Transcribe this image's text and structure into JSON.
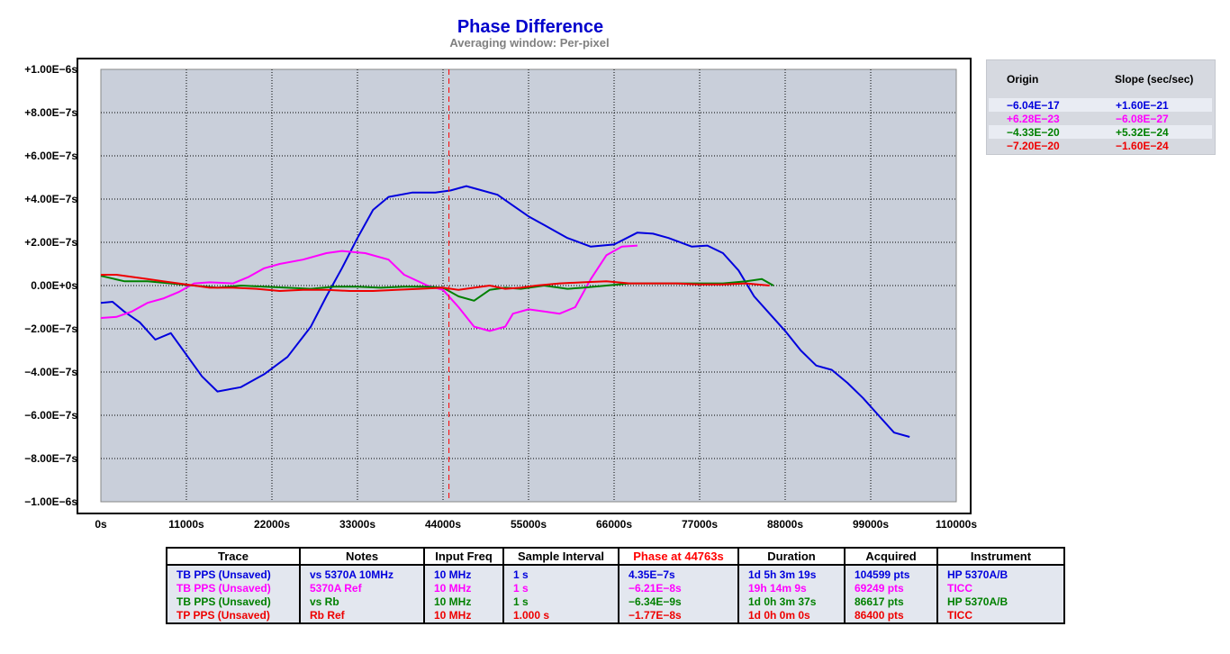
{
  "chart_data": {
    "type": "line",
    "title": "Phase Difference",
    "subtitle": "Averaging window: Per-pixel",
    "xlim": [
      0,
      110000
    ],
    "ylim": [
      -1e-06,
      1e-06
    ],
    "x_ticks": [
      "0s",
      "11000s",
      "22000s",
      "33000s",
      "44000s",
      "55000s",
      "66000s",
      "77000s",
      "88000s",
      "99000s",
      "110000s"
    ],
    "y_ticks": [
      "+1.00E−6s",
      "+8.00E−7s",
      "+6.00E−7s",
      "+4.00E−7s",
      "+2.00E−7s",
      "0.00E+0s",
      "−2.00E−7s",
      "−4.00E−7s",
      "−6.00E−7s",
      "−8.00E−7s",
      "−1.00E−6s"
    ],
    "grid": true,
    "cursor_x": 44763,
    "cursor_color": "#ff0000",
    "plot_background": "#c9cfda",
    "series": [
      {
        "name": "TB PPS (Unsaved)",
        "color": "#0000dd",
        "points": [
          [
            0,
            -8e-08
          ],
          [
            1500,
            -7.5e-08
          ],
          [
            3000,
            -1.2e-07
          ],
          [
            5000,
            -1.7e-07
          ],
          [
            7000,
            -2.5e-07
          ],
          [
            9000,
            -2.2e-07
          ],
          [
            11000,
            -3.2e-07
          ],
          [
            13000,
            -4.2e-07
          ],
          [
            15000,
            -4.9e-07
          ],
          [
            18000,
            -4.7e-07
          ],
          [
            21000,
            -4.1e-07
          ],
          [
            24000,
            -3.3e-07
          ],
          [
            27000,
            -1.9e-07
          ],
          [
            29000,
            -5e-08
          ],
          [
            31000,
            8e-08
          ],
          [
            33000,
            2.2e-07
          ],
          [
            35000,
            3.5e-07
          ],
          [
            37000,
            4.1e-07
          ],
          [
            40000,
            4.3e-07
          ],
          [
            43000,
            4.3e-07
          ],
          [
            45000,
            4.4e-07
          ],
          [
            47000,
            4.6e-07
          ],
          [
            49000,
            4.4e-07
          ],
          [
            51000,
            4.2e-07
          ],
          [
            53000,
            3.7e-07
          ],
          [
            55000,
            3.2e-07
          ],
          [
            57000,
            2.8e-07
          ],
          [
            60000,
            2.2e-07
          ],
          [
            63000,
            1.8e-07
          ],
          [
            66000,
            1.9e-07
          ],
          [
            69000,
            2.45e-07
          ],
          [
            71000,
            2.4e-07
          ],
          [
            73000,
            2.2e-07
          ],
          [
            76000,
            1.8e-07
          ],
          [
            78000,
            1.85e-07
          ],
          [
            80000,
            1.5e-07
          ],
          [
            82000,
            7e-08
          ],
          [
            84000,
            -5e-08
          ],
          [
            86000,
            -1.3e-07
          ],
          [
            88000,
            -2.1e-07
          ],
          [
            90000,
            -3e-07
          ],
          [
            92000,
            -3.7e-07
          ],
          [
            94000,
            -3.9e-07
          ],
          [
            96000,
            -4.5e-07
          ],
          [
            98000,
            -5.2e-07
          ],
          [
            100000,
            -6e-07
          ],
          [
            102000,
            -6.8e-07
          ],
          [
            104000,
            -7e-07
          ]
        ]
      },
      {
        "name": "TB PPS (Unsaved)",
        "color": "#ff00ff",
        "points": [
          [
            0,
            -1.5e-07
          ],
          [
            2000,
            -1.45e-07
          ],
          [
            4000,
            -1.2e-07
          ],
          [
            6000,
            -8e-08
          ],
          [
            8000,
            -6e-08
          ],
          [
            10000,
            -3e-08
          ],
          [
            12000,
            1e-08
          ],
          [
            14000,
            1.5e-08
          ],
          [
            17000,
            1e-08
          ],
          [
            19000,
            4e-08
          ],
          [
            21000,
            8e-08
          ],
          [
            23000,
            1e-07
          ],
          [
            26000,
            1.2e-07
          ],
          [
            29000,
            1.5e-07
          ],
          [
            31000,
            1.6e-07
          ],
          [
            34000,
            1.5e-07
          ],
          [
            37000,
            1.2e-07
          ],
          [
            39000,
            5e-08
          ],
          [
            42000,
            0
          ],
          [
            44000,
            -2e-08
          ],
          [
            46000,
            -1e-07
          ],
          [
            48000,
            -1.9e-07
          ],
          [
            50000,
            -2.1e-07
          ],
          [
            52000,
            -1.9e-07
          ],
          [
            53000,
            -1.3e-07
          ],
          [
            55000,
            -1.1e-07
          ],
          [
            57000,
            -1.2e-07
          ],
          [
            59000,
            -1.3e-07
          ],
          [
            61000,
            -1e-07
          ],
          [
            63000,
            3e-08
          ],
          [
            65000,
            1.4e-07
          ],
          [
            67000,
            1.8e-07
          ],
          [
            69000,
            1.85e-07
          ]
        ]
      },
      {
        "name": "TB PPS (Unsaved)",
        "color": "#008000",
        "points": [
          [
            0,
            4.5e-08
          ],
          [
            3000,
            2e-08
          ],
          [
            6000,
            2e-08
          ],
          [
            9000,
            1e-08
          ],
          [
            12000,
            0
          ],
          [
            15000,
            -1e-08
          ],
          [
            18000,
            0
          ],
          [
            21000,
            -5e-09
          ],
          [
            24000,
            -1e-08
          ],
          [
            27000,
            -1.5e-08
          ],
          [
            30000,
            -5e-09
          ],
          [
            33000,
            -5e-09
          ],
          [
            36000,
            -1e-08
          ],
          [
            39000,
            -5e-09
          ],
          [
            42000,
            -5e-09
          ],
          [
            44000,
            -1e-08
          ],
          [
            46000,
            -5e-08
          ],
          [
            48000,
            -7e-08
          ],
          [
            50000,
            -2e-08
          ],
          [
            52000,
            -1e-08
          ],
          [
            54000,
            -1.5e-08
          ],
          [
            57000,
            0
          ],
          [
            60000,
            -1.5e-08
          ],
          [
            62000,
            -1e-08
          ],
          [
            65000,
            0
          ],
          [
            68000,
            1e-08
          ],
          [
            72000,
            1e-08
          ],
          [
            76000,
            1e-08
          ],
          [
            80000,
            1e-08
          ],
          [
            83000,
            2e-08
          ],
          [
            85000,
            3e-08
          ],
          [
            86500,
            0
          ]
        ]
      },
      {
        "name": "TP PPS (Unsaved)",
        "color": "#ee0000",
        "points": [
          [
            0,
            5e-08
          ],
          [
            2000,
            5e-08
          ],
          [
            4000,
            4e-08
          ],
          [
            6000,
            3e-08
          ],
          [
            8000,
            2e-08
          ],
          [
            10000,
            1e-08
          ],
          [
            12000,
            0
          ],
          [
            14000,
            -1e-08
          ],
          [
            17000,
            -1e-08
          ],
          [
            20000,
            -1.5e-08
          ],
          [
            23000,
            -2.5e-08
          ],
          [
            26000,
            -2e-08
          ],
          [
            29000,
            -2e-08
          ],
          [
            32000,
            -2.5e-08
          ],
          [
            35000,
            -2.5e-08
          ],
          [
            38000,
            -2e-08
          ],
          [
            41000,
            -1.5e-08
          ],
          [
            44000,
            -1e-08
          ],
          [
            46000,
            -2e-08
          ],
          [
            48000,
            -1e-08
          ],
          [
            50000,
            0
          ],
          [
            52000,
            -1.5e-08
          ],
          [
            54000,
            -1e-08
          ],
          [
            56000,
            0
          ],
          [
            59000,
            1e-08
          ],
          [
            62000,
            1.5e-08
          ],
          [
            65000,
            2e-08
          ],
          [
            68000,
            1e-08
          ],
          [
            71000,
            1e-08
          ],
          [
            74000,
            1e-08
          ],
          [
            77000,
            5e-09
          ],
          [
            80000,
            5e-09
          ],
          [
            83000,
            1e-08
          ],
          [
            86000,
            0
          ]
        ]
      }
    ]
  },
  "legend": {
    "origin_header": "Origin",
    "slope_header": "Slope (sec/sec)",
    "background": "#d6d9e0",
    "rows": [
      {
        "origin": "−6.04E−17",
        "slope": "+1.60E−21",
        "color": "#0000dd"
      },
      {
        "origin": "+6.28E−23",
        "slope": "−6.08E−27",
        "color": "#ff00ff"
      },
      {
        "origin": "−4.33E−20",
        "slope": "+5.32E−24",
        "color": "#008000"
      },
      {
        "origin": "−7.20E−20",
        "slope": "−1.60E−24",
        "color": "#ee0000"
      }
    ]
  },
  "table": {
    "headers": [
      "Trace",
      "Notes",
      "Input Freq",
      "Sample Interval",
      "Phase at 44763s",
      "Duration",
      "Acquired",
      "Instrument"
    ],
    "phase_header_color": "#ff0000",
    "rows": [
      {
        "color": "#0000dd",
        "cells": [
          "TB PPS (Unsaved)",
          "vs 5370A 10MHz",
          "10 MHz",
          "1 s",
          "4.35E−7s",
          "1d 5h 3m 19s",
          "104599 pts",
          "HP 5370A/B"
        ]
      },
      {
        "color": "#ff00ff",
        "cells": [
          "TB PPS (Unsaved)",
          "5370A Ref",
          "10 MHz",
          "1 s",
          "−6.21E−8s",
          "19h 14m 9s",
          "69249 pts",
          "TICC"
        ]
      },
      {
        "color": "#008000",
        "cells": [
          "TB PPS (Unsaved)",
          "vs Rb",
          "10 MHz",
          "1 s",
          "−6.34E−9s",
          "1d 0h 3m 37s",
          "86617 pts",
          "HP 5370A/B"
        ]
      },
      {
        "color": "#ee0000",
        "cells": [
          "TP PPS (Unsaved)",
          "Rb Ref",
          "10 MHz",
          "1.000 s",
          "−1.77E−8s",
          "1d 0h 0m 0s",
          "86400 pts",
          "TICC"
        ]
      }
    ]
  }
}
